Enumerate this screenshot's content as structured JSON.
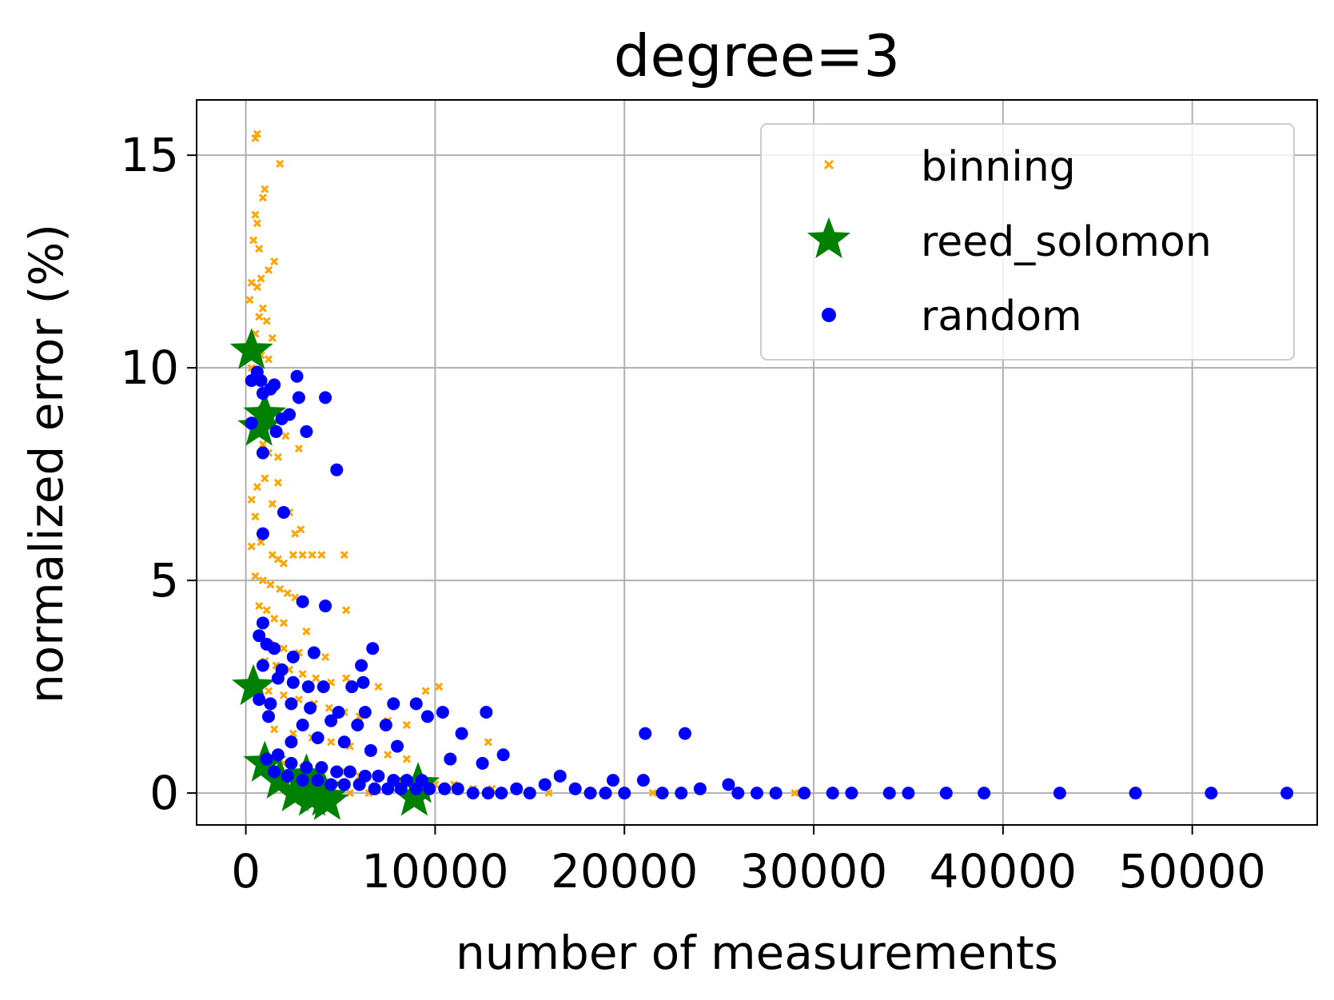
{
  "chart_data": {
    "type": "scatter",
    "title": "degree=3",
    "xlabel": "number of measurements",
    "ylabel": "normalized error (%)",
    "xlim": [
      -2600,
      56600
    ],
    "ylim": [
      -0.75,
      16.3
    ],
    "xticks": [
      0,
      10000,
      20000,
      30000,
      40000,
      50000
    ],
    "xtick_labels": [
      "0",
      "10000",
      "20000",
      "30000",
      "40000",
      "50000"
    ],
    "yticks": [
      0,
      5,
      10,
      15
    ],
    "ytick_labels": [
      "0",
      "5",
      "10",
      "15"
    ],
    "grid": true,
    "legend_position": "top-right",
    "colors": {
      "binning": "#ffa500",
      "reed_solomon": "#008000",
      "random": "#0000ff"
    },
    "series": [
      {
        "name": "binning",
        "marker": "x",
        "points": [
          [
            600,
            15.5
          ],
          [
            500,
            15.4
          ],
          [
            1000,
            14.2
          ],
          [
            900,
            14.0
          ],
          [
            1800,
            14.8
          ],
          [
            500,
            13.6
          ],
          [
            600,
            13.4
          ],
          [
            400,
            13.0
          ],
          [
            700,
            12.8
          ],
          [
            1500,
            12.5
          ],
          [
            300,
            12.0
          ],
          [
            800,
            12.1
          ],
          [
            600,
            11.9
          ],
          [
            1200,
            12.3
          ],
          [
            200,
            11.6
          ],
          [
            900,
            11.4
          ],
          [
            700,
            11.2
          ],
          [
            1100,
            11.1
          ],
          [
            500,
            10.8
          ],
          [
            1400,
            10.7
          ],
          [
            800,
            10.3
          ],
          [
            1200,
            10.2
          ],
          [
            300,
            10.0
          ],
          [
            1000,
            9.4
          ],
          [
            800,
            9.0
          ],
          [
            1200,
            8.8
          ],
          [
            1500,
            8.5
          ],
          [
            900,
            8.2
          ],
          [
            1200,
            8.0
          ],
          [
            2100,
            8.4
          ],
          [
            2800,
            8.1
          ],
          [
            1700,
            7.9
          ],
          [
            300,
            6.9
          ],
          [
            600,
            7.2
          ],
          [
            1000,
            7.4
          ],
          [
            1700,
            7.3
          ],
          [
            500,
            6.5
          ],
          [
            1400,
            6.8
          ],
          [
            2300,
            6.6
          ],
          [
            2600,
            6.1
          ],
          [
            2900,
            6.2
          ],
          [
            300,
            5.8
          ],
          [
            800,
            5.9
          ],
          [
            1400,
            5.6
          ],
          [
            1700,
            5.5
          ],
          [
            2000,
            5.4
          ],
          [
            2500,
            5.6
          ],
          [
            3000,
            5.6
          ],
          [
            3500,
            5.6
          ],
          [
            4000,
            5.6
          ],
          [
            5200,
            5.6
          ],
          [
            500,
            5.1
          ],
          [
            900,
            5.0
          ],
          [
            1300,
            4.9
          ],
          [
            1800,
            4.8
          ],
          [
            2200,
            4.7
          ],
          [
            2600,
            4.6
          ],
          [
            3100,
            4.5
          ],
          [
            700,
            4.4
          ],
          [
            1100,
            4.3
          ],
          [
            1500,
            4.1
          ],
          [
            2000,
            4.0
          ],
          [
            3200,
            3.8
          ],
          [
            5300,
            4.3
          ],
          [
            800,
            3.7
          ],
          [
            1300,
            3.5
          ],
          [
            2000,
            3.4
          ],
          [
            2800,
            3.3
          ],
          [
            3500,
            3.3
          ],
          [
            4200,
            3.2
          ],
          [
            1000,
            3.1
          ],
          [
            1600,
            3.0
          ],
          [
            2300,
            2.9
          ],
          [
            3000,
            2.8
          ],
          [
            3700,
            2.7
          ],
          [
            4500,
            2.6
          ],
          [
            5300,
            2.7
          ],
          [
            6200,
            2.6
          ],
          [
            7000,
            2.5
          ],
          [
            1200,
            2.4
          ],
          [
            2000,
            2.3
          ],
          [
            2800,
            2.2
          ],
          [
            3600,
            2.1
          ],
          [
            4400,
            2.0
          ],
          [
            5200,
            1.9
          ],
          [
            6000,
            1.8
          ],
          [
            7500,
            1.7
          ],
          [
            8500,
            1.6
          ],
          [
            9500,
            2.4
          ],
          [
            10200,
            2.5
          ],
          [
            1500,
            1.5
          ],
          [
            2500,
            1.4
          ],
          [
            3500,
            1.3
          ],
          [
            4500,
            1.2
          ],
          [
            5500,
            1.1
          ],
          [
            6500,
            1.0
          ],
          [
            7500,
            0.9
          ],
          [
            8500,
            0.8
          ],
          [
            12800,
            1.2
          ],
          [
            2000,
            0.7
          ],
          [
            3000,
            0.6
          ],
          [
            4000,
            0.5
          ],
          [
            5000,
            0.5
          ],
          [
            6000,
            0.4
          ],
          [
            7000,
            0.4
          ],
          [
            8000,
            0.3
          ],
          [
            9000,
            0.3
          ],
          [
            10000,
            0.2
          ],
          [
            11000,
            0.2
          ],
          [
            12000,
            0.1
          ],
          [
            13000,
            0.1
          ],
          [
            2500,
            0.1
          ],
          [
            3500,
            0.1
          ],
          [
            4500,
            0.0
          ],
          [
            5500,
            0.0
          ],
          [
            6500,
            0.0
          ],
          [
            16000,
            0.0
          ],
          [
            21500,
            0.0
          ],
          [
            29000,
            0.0
          ]
        ]
      },
      {
        "name": "reed_solomon",
        "marker": "star",
        "points": [
          [
            300,
            10.4
          ],
          [
            1000,
            8.9
          ],
          [
            700,
            8.6
          ],
          [
            400,
            2.5
          ],
          [
            1000,
            0.7
          ],
          [
            1800,
            0.3
          ],
          [
            2600,
            0.0
          ],
          [
            3200,
            0.4
          ],
          [
            4000,
            0.1
          ],
          [
            3500,
            -0.1
          ],
          [
            4200,
            -0.1
          ],
          [
            4300,
            -0.2
          ],
          [
            8900,
            -0.1
          ],
          [
            9100,
            0.2
          ]
        ]
      },
      {
        "name": "random",
        "marker": "dot",
        "points": [
          [
            600,
            9.9
          ],
          [
            800,
            9.7
          ],
          [
            1500,
            9.6
          ],
          [
            2700,
            9.8
          ],
          [
            300,
            9.7
          ],
          [
            1300,
            9.5
          ],
          [
            900,
            9.4
          ],
          [
            2800,
            9.3
          ],
          [
            4200,
            9.3
          ],
          [
            2300,
            8.9
          ],
          [
            1900,
            8.8
          ],
          [
            300,
            8.7
          ],
          [
            1600,
            8.5
          ],
          [
            3200,
            8.5
          ],
          [
            900,
            8.0
          ],
          [
            4800,
            7.6
          ],
          [
            2000,
            6.6
          ],
          [
            900,
            6.1
          ],
          [
            3000,
            4.5
          ],
          [
            4200,
            4.4
          ],
          [
            900,
            4.0
          ],
          [
            700,
            3.7
          ],
          [
            1100,
            3.5
          ],
          [
            1500,
            3.4
          ],
          [
            2500,
            3.2
          ],
          [
            3600,
            3.3
          ],
          [
            6700,
            3.4
          ],
          [
            900,
            3.0
          ],
          [
            1900,
            2.9
          ],
          [
            6100,
            3.0
          ],
          [
            1700,
            2.7
          ],
          [
            2500,
            2.6
          ],
          [
            3300,
            2.5
          ],
          [
            4100,
            2.5
          ],
          [
            5600,
            2.5
          ],
          [
            6200,
            2.6
          ],
          [
            700,
            2.2
          ],
          [
            1300,
            2.1
          ],
          [
            2400,
            2.1
          ],
          [
            3400,
            2.0
          ],
          [
            4900,
            1.9
          ],
          [
            6300,
            1.9
          ],
          [
            7800,
            2.1
          ],
          [
            9000,
            2.1
          ],
          [
            10400,
            1.9
          ],
          [
            12700,
            1.9
          ],
          [
            1200,
            1.8
          ],
          [
            3000,
            1.6
          ],
          [
            4500,
            1.7
          ],
          [
            5900,
            1.6
          ],
          [
            7400,
            1.6
          ],
          [
            9600,
            1.8
          ],
          [
            11400,
            1.4
          ],
          [
            21100,
            1.4
          ],
          [
            23200,
            1.4
          ],
          [
            2400,
            1.2
          ],
          [
            3800,
            1.3
          ],
          [
            5200,
            1.2
          ],
          [
            6600,
            1.0
          ],
          [
            8000,
            1.1
          ],
          [
            10800,
            0.8
          ],
          [
            12500,
            0.7
          ],
          [
            13600,
            0.9
          ],
          [
            1100,
            0.8
          ],
          [
            1700,
            0.9
          ],
          [
            2400,
            0.7
          ],
          [
            3200,
            0.6
          ],
          [
            4000,
            0.6
          ],
          [
            4800,
            0.5
          ],
          [
            5500,
            0.5
          ],
          [
            6300,
            0.4
          ],
          [
            7000,
            0.4
          ],
          [
            7800,
            0.3
          ],
          [
            8500,
            0.3
          ],
          [
            9300,
            0.3
          ],
          [
            1500,
            0.5
          ],
          [
            2200,
            0.4
          ],
          [
            3000,
            0.3
          ],
          [
            3800,
            0.3
          ],
          [
            4500,
            0.2
          ],
          [
            5200,
            0.2
          ],
          [
            6000,
            0.2
          ],
          [
            6800,
            0.1
          ],
          [
            7500,
            0.1
          ],
          [
            8200,
            0.1
          ],
          [
            9000,
            0.1
          ],
          [
            9700,
            0.1
          ],
          [
            10500,
            0.1
          ],
          [
            11200,
            0.1
          ],
          [
            12000,
            0.0
          ],
          [
            12800,
            0.0
          ],
          [
            13500,
            0.0
          ],
          [
            14300,
            0.1
          ],
          [
            15000,
            0.0
          ],
          [
            15800,
            0.2
          ],
          [
            16600,
            0.4
          ],
          [
            17400,
            0.1
          ],
          [
            18200,
            0.0
          ],
          [
            19000,
            0.0
          ],
          [
            19400,
            0.3
          ],
          [
            20000,
            0.0
          ],
          [
            21000,
            0.3
          ],
          [
            22000,
            0.0
          ],
          [
            23000,
            0.0
          ],
          [
            24000,
            0.1
          ],
          [
            25500,
            0.2
          ],
          [
            26000,
            0.0
          ],
          [
            27000,
            0.0
          ],
          [
            28000,
            0.0
          ],
          [
            29500,
            0.0
          ],
          [
            31000,
            0.0
          ],
          [
            32000,
            0.0
          ],
          [
            34000,
            0.0
          ],
          [
            35000,
            0.0
          ],
          [
            37000,
            0.0
          ],
          [
            39000,
            0.0
          ],
          [
            43000,
            0.0
          ],
          [
            47000,
            0.0
          ],
          [
            51000,
            0.0
          ],
          [
            55000,
            0.0
          ]
        ]
      }
    ]
  }
}
